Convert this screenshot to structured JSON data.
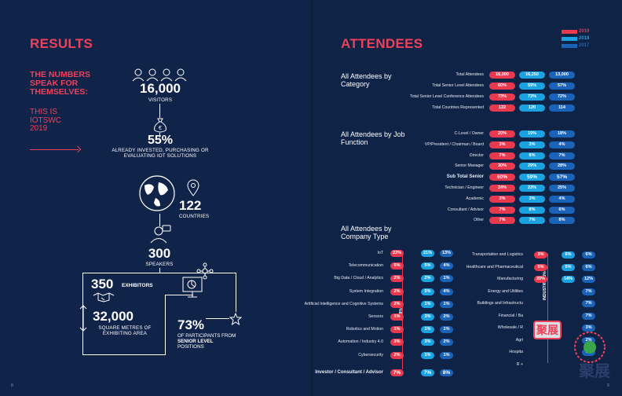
{
  "left": {
    "title": "RESULTS",
    "speak": "THE NUMBERS SPEAK FOR THEMSELVES:",
    "this_is": "THIS IS IOTSWC 2019",
    "visitors_num": "16,000",
    "visitors_lbl": "VISITORS",
    "invested_num": "55%",
    "invested_lbl": "ALREADY INVESTED, PURCHASING OR EVALUATING IOT SOLUTIONS",
    "countries_num": "122",
    "countries_lbl": "COUNTRIES",
    "speakers_num": "300",
    "speakers_lbl": "SPEAKERS",
    "exhibitors_num": "350",
    "exhibitors_lbl": "EXHIBITORS",
    "area_num": "32,000",
    "area_lbl": "SQUARE METRES OF EXHIBITING AREA",
    "senior_num": "73%",
    "senior_lbl_a": "OF PARTICIPANTS FROM ",
    "senior_lbl_b": "SENIOR LEVEL",
    "senior_lbl_c": " POSITIONS",
    "page_no": "8",
    "euro_symbol": "€"
  },
  "right": {
    "title": "ATTENDEES",
    "page_no": "9",
    "legend": [
      "2019",
      "2018",
      "2017"
    ],
    "section1": "All Attendees by Category",
    "section2": "All Attendees by Job Function",
    "section3": "All Attendees by Company Type",
    "it_label": "IT 18%",
    "industry_label": "INDUSTRY 46%",
    "watermark": "聚展",
    "watermark2": "聚展"
  },
  "colors": {
    "y2019": "#e8394f",
    "y2018": "#1aa3e0",
    "y2017": "#1b63b8",
    "accent": "#f0415a"
  },
  "chart_data": [
    {
      "type": "table",
      "title": "All Attendees by Category",
      "series": [
        {
          "name": "2019"
        },
        {
          "name": "2018"
        },
        {
          "name": "2017"
        }
      ],
      "rows": [
        {
          "label": "Total Attendees",
          "values": [
            "16,000",
            "16,250",
            "13,000"
          ]
        },
        {
          "label": "Total Senior Level Attendees",
          "values": [
            "60%",
            "59%",
            "57%"
          ]
        },
        {
          "label": "Total Senior Level Conference Attendees",
          "values": [
            "73%",
            "73%",
            "72%"
          ]
        },
        {
          "label": "Total Countries Represented",
          "values": [
            "122",
            "120",
            "114"
          ]
        }
      ]
    },
    {
      "type": "table",
      "title": "All Attendees by Job Function",
      "rows": [
        {
          "label": "C-Level / Owner",
          "values": [
            "20%",
            "19%",
            "18%"
          ]
        },
        {
          "label": "VP/President / Chairman / Board",
          "values": [
            "3%",
            "3%",
            "4%"
          ]
        },
        {
          "label": "Director",
          "values": [
            "7%",
            "8%",
            "7%"
          ]
        },
        {
          "label": "Senior Manager",
          "values": [
            "30%",
            "29%",
            "28%"
          ]
        },
        {
          "label": "Sub Total Senior",
          "values": [
            "60%",
            "59%",
            "57%"
          ],
          "bold": true
        },
        {
          "label": "Technician / Engineer",
          "values": [
            "24%",
            "23%",
            "25%"
          ]
        },
        {
          "label": "Academic",
          "values": [
            "3%",
            "3%",
            "4%"
          ]
        },
        {
          "label": "Consultant / Advisor",
          "values": [
            "7%",
            "8%",
            "6%"
          ]
        },
        {
          "label": "Other",
          "values": [
            "7%",
            "7%",
            "8%"
          ]
        }
      ]
    },
    {
      "type": "table",
      "title": "All Attendees by Company Type",
      "rows_left": [
        {
          "label": "IoT",
          "values": [
            "23%",
            "21%",
            "13%"
          ]
        },
        {
          "label": "Telecommunication",
          "values": [
            "5%",
            "5%",
            "4%"
          ]
        },
        {
          "label": "Big Data / Cloud / Analytics",
          "values": [
            "2%",
            "2%",
            "1%"
          ]
        },
        {
          "label": "System Integration",
          "values": [
            "2%",
            "5%",
            "4%"
          ]
        },
        {
          "label": "Artificial Intelligence and Cognitive Systems",
          "values": [
            "2%",
            "1%",
            "1%"
          ]
        },
        {
          "label": "Sensors",
          "values": [
            "1%",
            "3%",
            "2%"
          ]
        },
        {
          "label": "Robotics and Motion",
          "values": [
            "1%",
            "1%",
            "1%"
          ]
        },
        {
          "label": "Automation / Industry 4.0",
          "values": [
            "3%",
            "3%",
            "2%"
          ]
        },
        {
          "label": "Cybersecurity",
          "values": [
            "2%",
            "1%",
            "1%"
          ]
        },
        {
          "label": "Investor / Consultant / Advisor",
          "values": [
            "7%",
            "7%",
            "8%"
          ],
          "bold": true
        }
      ],
      "rows_right": [
        {
          "label": "Transportation and Logistics",
          "values": [
            "3%",
            "6%",
            "6%"
          ]
        },
        {
          "label": "Healthcare and Pharmaceutical",
          "values": [
            "5%",
            "5%",
            "6%"
          ]
        },
        {
          "label": "Manufacturing",
          "values": [
            "20%",
            "14%",
            "12%"
          ]
        },
        {
          "label": "Energy and Utilities",
          "values": [
            "",
            "",
            "7%"
          ]
        },
        {
          "label": "Buildings and Infrastructu",
          "values": [
            "",
            "",
            "7%"
          ]
        },
        {
          "label": "Financial / Ba",
          "values": [
            "",
            "",
            "7%"
          ]
        },
        {
          "label": "Wholesale / R",
          "values": [
            "",
            "",
            "3%"
          ]
        },
        {
          "label": "Agri",
          "values": [
            "",
            "",
            "2%"
          ]
        },
        {
          "label": "Hospita",
          "values": [
            "",
            "",
            "6%"
          ]
        },
        {
          "label": "R +",
          "values": [
            "",
            "",
            ""
          ]
        }
      ]
    }
  ]
}
